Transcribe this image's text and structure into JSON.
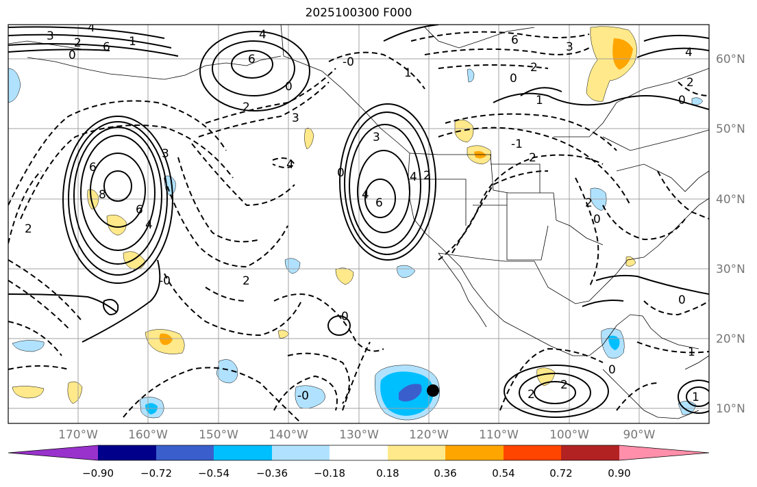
{
  "title": "2025100300 F000",
  "lon_labels": [
    "170°W",
    "160°W",
    "150°W",
    "140°W",
    "130°W",
    "120°W",
    "110°W",
    "100°W",
    "90°W"
  ],
  "lat_labels": [
    "60°N",
    "50°N",
    "40°N",
    "30°N",
    "20°N",
    "10°N"
  ],
  "colorbar": {
    "ticks": [
      "−0.90",
      "−0.72",
      "−0.54",
      "−0.36",
      "−0.18",
      "0.18",
      "0.36",
      "0.54",
      "0.72",
      "0.90"
    ],
    "colors": [
      "#9932cc",
      "#00008b",
      "#3a5fcd",
      "#00bfff",
      "#b0e2ff",
      "#ffffff",
      "#ffe98a",
      "#ffa500",
      "#ff4500",
      "#b22222",
      "#ff8fab"
    ]
  },
  "contour_labels": [
    "3",
    "4",
    "2",
    "6",
    "1",
    "0",
    "-0",
    "1",
    "4",
    "6",
    "2",
    "3",
    "0",
    "4",
    "6",
    "2",
    "-0",
    "8",
    "6",
    "4",
    "2",
    "3",
    "0",
    "4",
    "3",
    "2",
    "1",
    "0",
    "2",
    "4",
    "6",
    "3",
    "6",
    "4",
    "2",
    "0",
    "-0",
    "2",
    "2",
    "2",
    "0",
    "0",
    "1",
    "-1",
    "0",
    "0",
    "2",
    "1"
  ],
  "map_features": {
    "positive_contours": "solid",
    "negative_contours": "dashed",
    "marker": "black dot near 118°W 12°N"
  }
}
